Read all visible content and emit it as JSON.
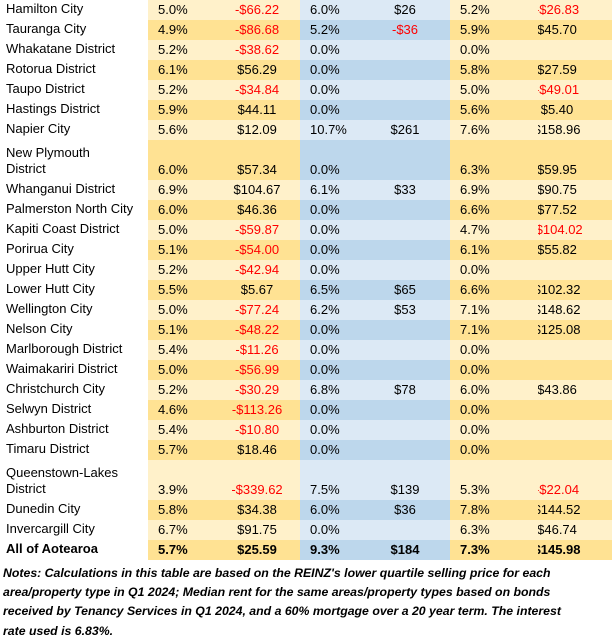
{
  "table": {
    "column_kinds": [
      "area",
      "pct",
      "amount",
      "pct",
      "amount",
      "pct",
      "amount"
    ],
    "rows": [
      {
        "cells": [
          "Hamilton City",
          "5.0%",
          "-$66.22",
          "6.0%",
          "$26",
          "5.2%",
          "-$26.83"
        ]
      },
      {
        "cells": [
          "Tauranga City",
          "4.9%",
          "-$86.68",
          "5.2%",
          "-$36",
          "5.9%",
          "$45.70"
        ]
      },
      {
        "cells": [
          "Whakatane District",
          "5.2%",
          "-$38.62",
          "0.0%",
          "",
          "0.0%",
          ""
        ]
      },
      {
        "cells": [
          "Rotorua District",
          "6.1%",
          "$56.29",
          "0.0%",
          "",
          "5.8%",
          "$27.59"
        ]
      },
      {
        "cells": [
          "Taupo District",
          "5.2%",
          "-$34.84",
          "0.0%",
          "",
          "5.0%",
          "-$49.01"
        ]
      },
      {
        "cells": [
          "Hastings District",
          "5.9%",
          "$44.11",
          "0.0%",
          "",
          "5.6%",
          "$5.40"
        ]
      },
      {
        "cells": [
          "Napier City",
          "5.6%",
          "$12.09",
          "10.7%",
          "$261",
          "7.6%",
          "$158.96"
        ]
      },
      {
        "cells": [
          "New Plymouth\nDistrict",
          "6.0%",
          "$57.34",
          "0.0%",
          "",
          "6.3%",
          "$59.95"
        ],
        "tall": true
      },
      {
        "cells": [
          "Whanganui District",
          "6.9%",
          "$104.67",
          "6.1%",
          "$33",
          "6.9%",
          "$90.75"
        ]
      },
      {
        "cells": [
          "Palmerston North City",
          "6.0%",
          "$46.36",
          "0.0%",
          "",
          "6.6%",
          "$77.52"
        ]
      },
      {
        "cells": [
          "Kapiti Coast District",
          "5.0%",
          "-$59.87",
          "0.0%",
          "",
          "4.7%",
          "-$104.02"
        ]
      },
      {
        "cells": [
          "Porirua City",
          "5.1%",
          "-$54.00",
          "0.0%",
          "",
          "6.1%",
          "$55.82"
        ]
      },
      {
        "cells": [
          "Upper Hutt City",
          "5.2%",
          "-$42.94",
          "0.0%",
          "",
          "0.0%",
          ""
        ]
      },
      {
        "cells": [
          "Lower Hutt City",
          "5.5%",
          "$5.67",
          "6.5%",
          "$65",
          "6.6%",
          "$102.32"
        ]
      },
      {
        "cells": [
          "Wellington City",
          "5.0%",
          "-$77.24",
          "6.2%",
          "$53",
          "7.1%",
          "$148.62"
        ]
      },
      {
        "cells": [
          "Nelson City",
          "5.1%",
          "-$48.22",
          "0.0%",
          "",
          "7.1%",
          "$125.08"
        ]
      },
      {
        "cells": [
          "Marlborough District",
          "5.4%",
          "-$11.26",
          "0.0%",
          "",
          "0.0%",
          ""
        ]
      },
      {
        "cells": [
          "Waimakariri District",
          "5.0%",
          "-$56.99",
          "0.0%",
          "",
          "0.0%",
          ""
        ]
      },
      {
        "cells": [
          "Christchurch City",
          "5.2%",
          "-$30.29",
          "6.8%",
          "$78",
          "6.0%",
          "$43.86"
        ]
      },
      {
        "cells": [
          "Selwyn District",
          "4.6%",
          "-$113.26",
          "0.0%",
          "",
          "0.0%",
          ""
        ]
      },
      {
        "cells": [
          "Ashburton District",
          "5.4%",
          "-$10.80",
          "0.0%",
          "",
          "0.0%",
          ""
        ]
      },
      {
        "cells": [
          "Timaru District",
          "5.7%",
          "$18.46",
          "0.0%",
          "",
          "0.0%",
          ""
        ]
      },
      {
        "cells": [
          "Queenstown-Lakes\nDistrict",
          "3.9%",
          "-$339.62",
          "7.5%",
          "$139",
          "5.3%",
          "-$22.04"
        ],
        "tall": true
      },
      {
        "cells": [
          "Dunedin City",
          "5.8%",
          "$34.38",
          "6.0%",
          "$36",
          "7.8%",
          "$144.52"
        ]
      },
      {
        "cells": [
          "Invercargill City",
          "6.7%",
          "$91.75",
          "0.0%",
          "",
          "6.3%",
          "$46.74"
        ]
      },
      {
        "cells": [
          "All of Aotearoa",
          "5.7%",
          "$25.59",
          "9.3%",
          "$184",
          "7.3%",
          "$145.98"
        ],
        "bold": true
      }
    ]
  },
  "notes": {
    "lines": [
      "Notes: Calculations in this table are based on the REINZ's lower quartile selling price for each",
      "area/property type in Q1 2024; Median rent for the same areas/property types based on bonds",
      "received by Tenancy Services in Q1 2024, and a 60% mortgage over a 20 year term. The interest",
      "rate used is 6.83%."
    ]
  },
  "colors": {
    "row_light_yellow": "#FFF1CA",
    "row_dark_yellow": "#FFE293",
    "row_light_blue": "#DCE9F5",
    "row_dark_blue": "#BDD7EC",
    "negative_value": "#FF0000",
    "text": "#000000",
    "background": "#FFFFFF"
  }
}
